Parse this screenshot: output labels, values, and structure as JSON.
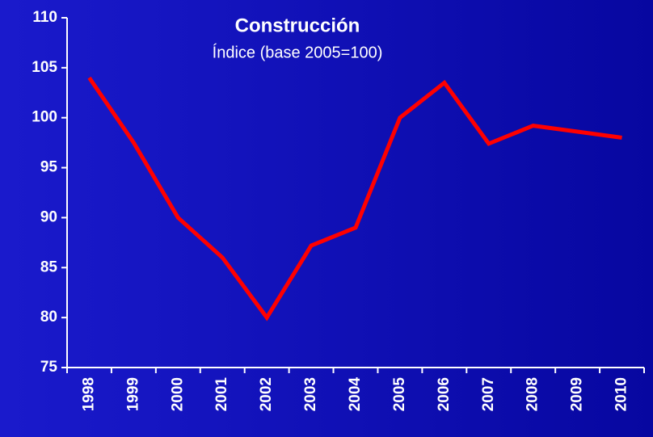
{
  "chart_data": {
    "type": "line",
    "title": "Construcción",
    "subtitle": "Índice (base 2005=100)",
    "categories": [
      "1998",
      "1999",
      "2000",
      "2001",
      "2002",
      "2003",
      "2004",
      "2005",
      "2006",
      "2007",
      "2008",
      "2009",
      "2010"
    ],
    "values": [
      104,
      97.5,
      90,
      86,
      80,
      87.2,
      89,
      100,
      103.5,
      97.4,
      99.2,
      98.6,
      98
    ],
    "color": "#ff0000",
    "ylim": [
      75,
      110
    ],
    "yticks": [
      75,
      80,
      85,
      90,
      95,
      100,
      105,
      110
    ]
  }
}
